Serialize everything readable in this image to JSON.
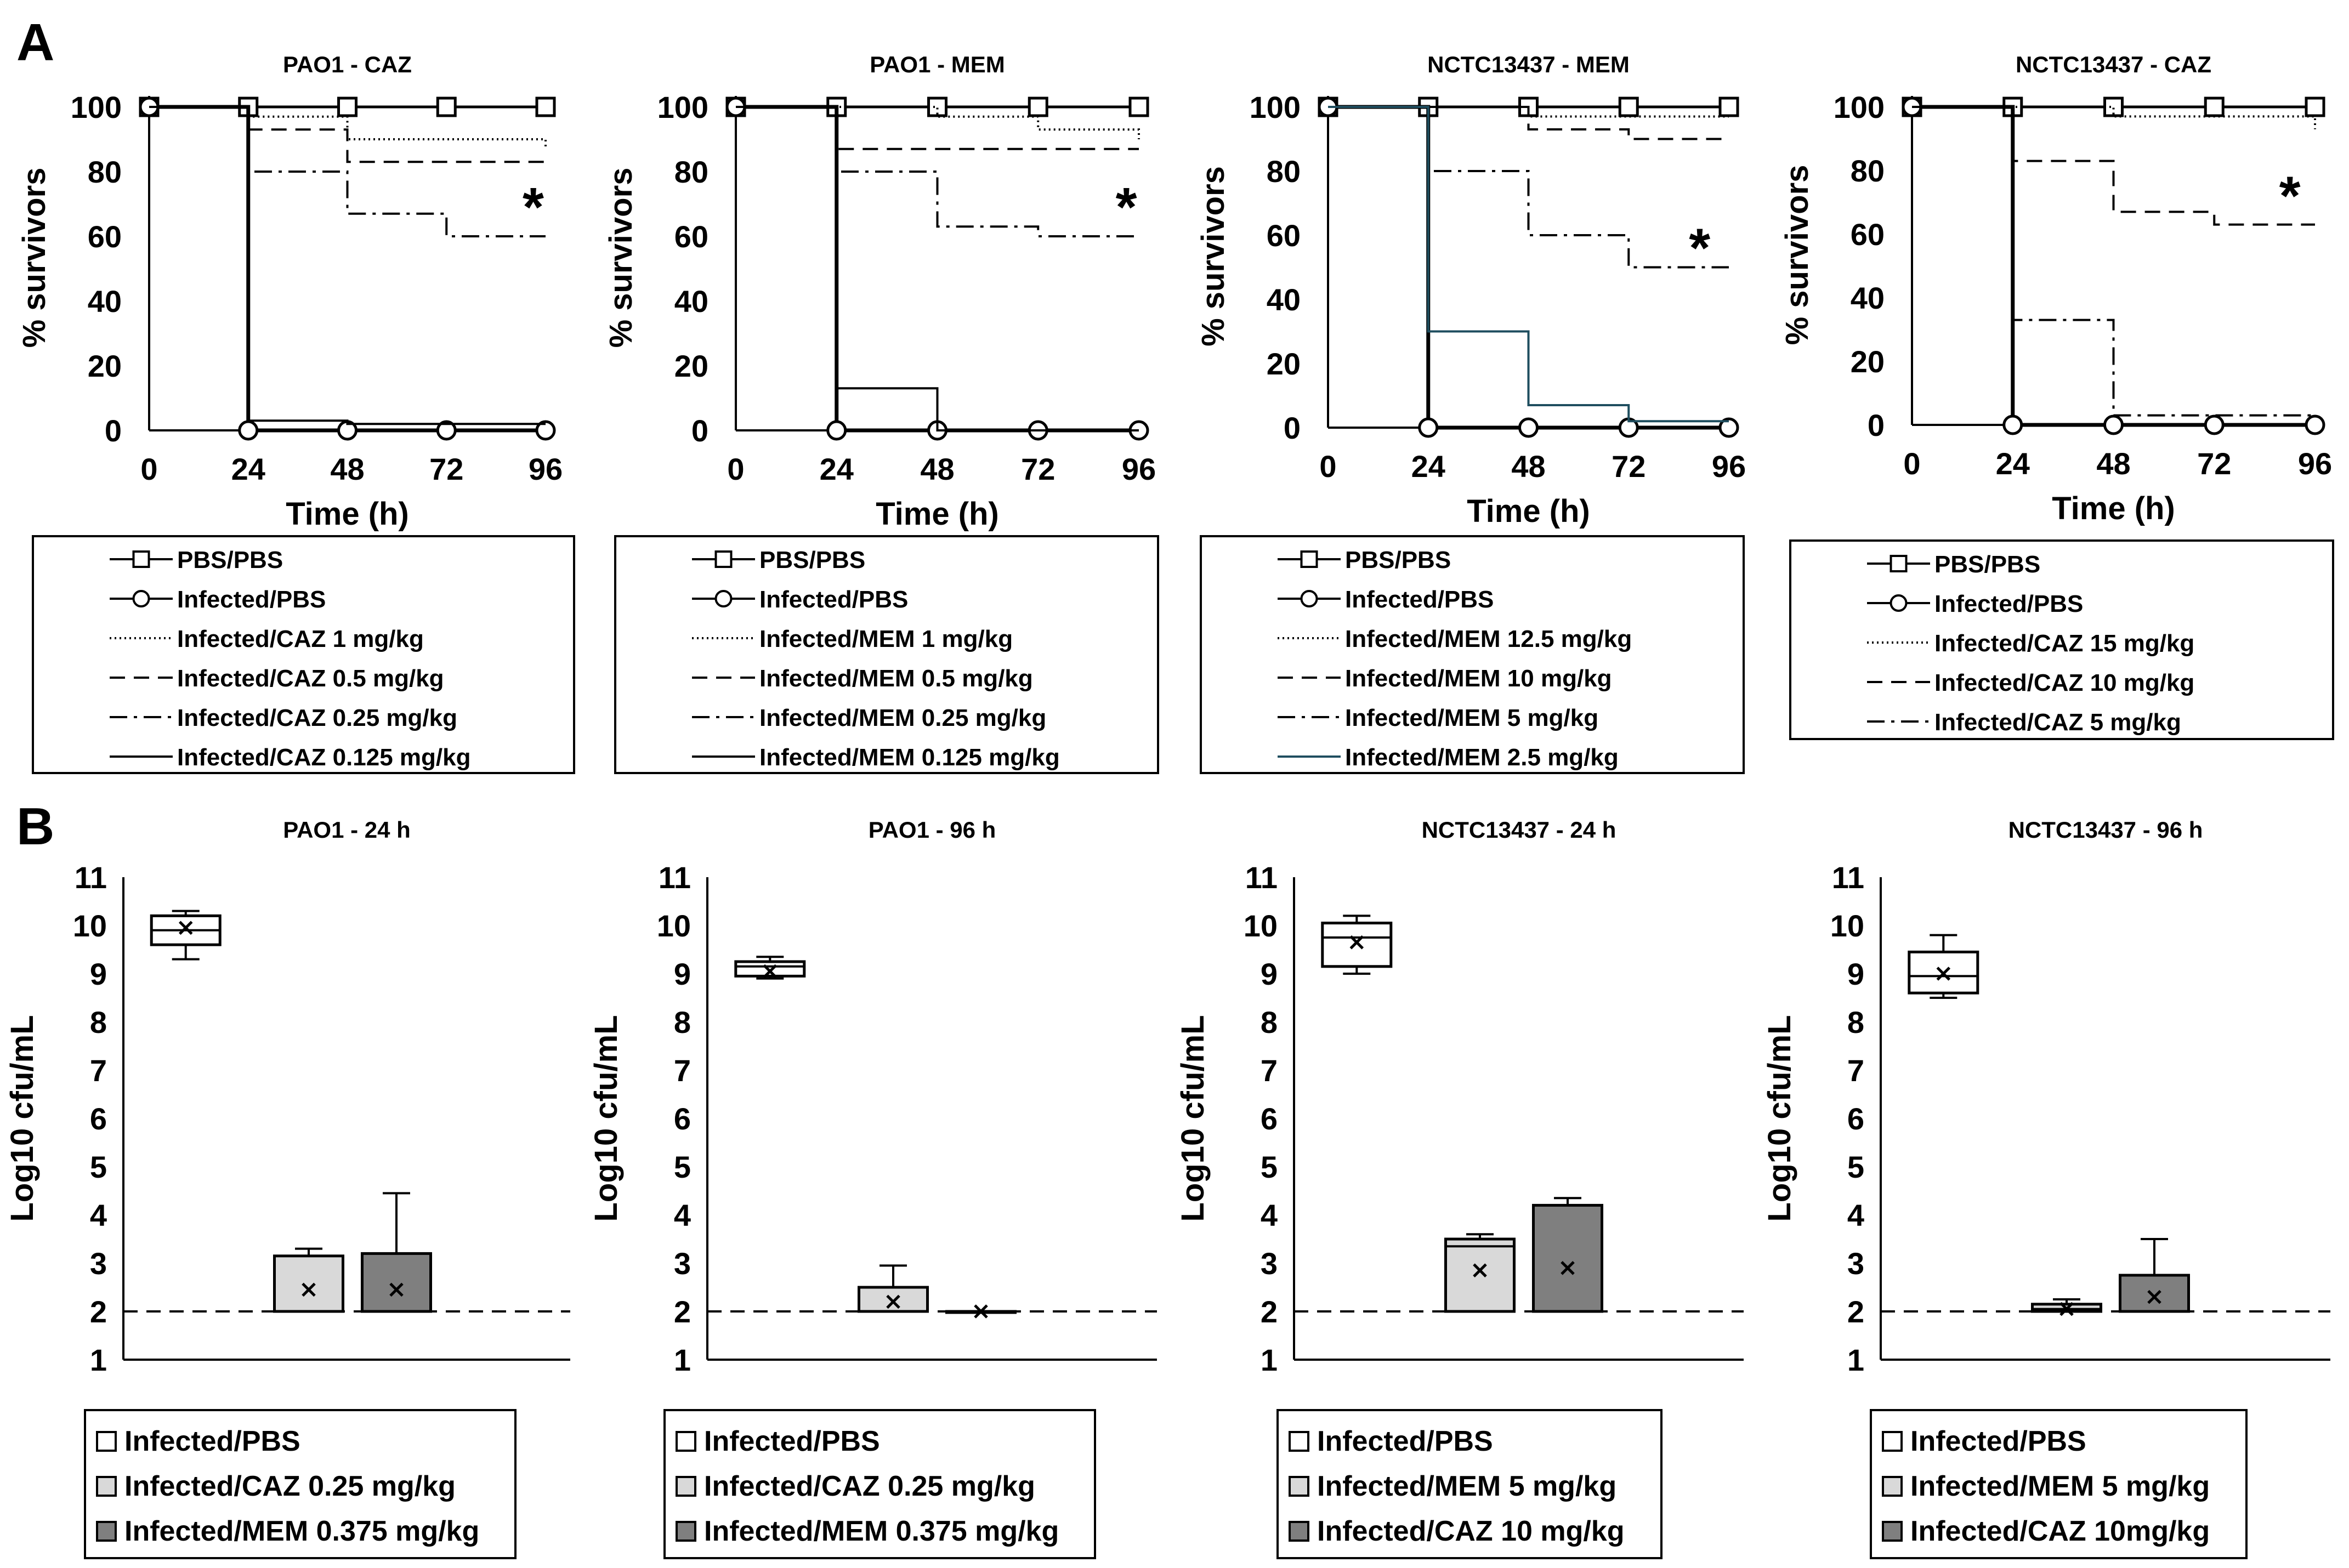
{
  "panel_labels": [
    "A",
    "B"
  ],
  "colors": {
    "black": "#000000",
    "teal": "#1f4e5f",
    "light_gray": "#d9d9d9",
    "dark_gray": "#7f7f7f"
  },
  "chart_data": [
    {
      "type": "line",
      "panel": "A",
      "title": "PAO1 - CAZ",
      "xlabel": "Time (h)",
      "ylabel": "% survivors",
      "xlim": [
        0,
        96
      ],
      "ylim": [
        0,
        100
      ],
      "xticks": [
        0,
        24,
        48,
        72,
        96
      ],
      "yticks": [
        0,
        20,
        40,
        60,
        80,
        100
      ],
      "annotation": "*",
      "annotation_at": [
        93,
        70
      ],
      "series": [
        {
          "name": "PBS/PBS",
          "style": "square-markers",
          "x": [
            0,
            24,
            48,
            72,
            96
          ],
          "values": [
            100,
            100,
            100,
            100,
            100
          ]
        },
        {
          "name": "Infected/PBS",
          "style": "circle-markers",
          "x": [
            0,
            24,
            48,
            72,
            96
          ],
          "values": [
            100,
            0,
            0,
            0,
            0
          ]
        },
        {
          "name": "Infected/CAZ 1 mg/kg",
          "style": "dotted",
          "x": [
            0,
            24,
            48,
            72,
            96
          ],
          "values": [
            100,
            97,
            90,
            90,
            87
          ]
        },
        {
          "name": "Infected/CAZ 0.5 mg/kg",
          "style": "dashed",
          "x": [
            0,
            24,
            48,
            72,
            96
          ],
          "values": [
            100,
            93,
            83,
            83,
            83
          ]
        },
        {
          "name": "Infected/CAZ 0.25 mg/kg",
          "style": "dashdot",
          "x": [
            0,
            24,
            48,
            72,
            96
          ],
          "values": [
            100,
            80,
            67,
            60,
            60
          ]
        },
        {
          "name": "Infected/CAZ 0.125 mg/kg",
          "style": "solid",
          "x": [
            0,
            24,
            48,
            72,
            96
          ],
          "values": [
            100,
            3,
            2,
            2,
            2
          ]
        }
      ]
    },
    {
      "type": "line",
      "panel": "A",
      "title": "PAO1 - MEM",
      "xlabel": "Time (h)",
      "ylabel": "% survivors",
      "xlim": [
        0,
        96
      ],
      "ylim": [
        0,
        100
      ],
      "xticks": [
        0,
        24,
        48,
        72,
        96
      ],
      "yticks": [
        0,
        20,
        40,
        60,
        80,
        100
      ],
      "annotation": "*",
      "annotation_at": [
        93,
        70
      ],
      "series": [
        {
          "name": "PBS/PBS",
          "style": "square-markers",
          "x": [
            0,
            24,
            48,
            72,
            96
          ],
          "values": [
            100,
            100,
            100,
            100,
            100
          ]
        },
        {
          "name": "Infected/PBS",
          "style": "circle-markers",
          "x": [
            0,
            24,
            48,
            72,
            96
          ],
          "values": [
            100,
            0,
            0,
            0,
            0
          ]
        },
        {
          "name": "Infected/MEM 1 mg/kg",
          "style": "dotted",
          "x": [
            0,
            24,
            48,
            72,
            96
          ],
          "values": [
            100,
            100,
            97,
            93,
            90
          ]
        },
        {
          "name": "Infected/MEM 0.5 mg/kg",
          "style": "dashed",
          "x": [
            0,
            24,
            48,
            72,
            96
          ],
          "values": [
            100,
            87,
            87,
            87,
            87
          ]
        },
        {
          "name": "Infected/MEM 0.25 mg/kg",
          "style": "dashdot",
          "x": [
            0,
            24,
            48,
            72,
            96
          ],
          "values": [
            100,
            80,
            63,
            60,
            60
          ]
        },
        {
          "name": "Infected/MEM 0.125 mg/kg",
          "style": "solid",
          "x": [
            0,
            24,
            48,
            72,
            96
          ],
          "values": [
            100,
            13,
            0,
            0,
            0
          ]
        }
      ]
    },
    {
      "type": "line",
      "panel": "A",
      "title": "NCTC13437 - MEM",
      "xlabel": "Time (h)",
      "ylabel": "% survivors",
      "xlim": [
        0,
        96
      ],
      "ylim": [
        0,
        100
      ],
      "xticks": [
        0,
        24,
        48,
        72,
        96
      ],
      "yticks": [
        0,
        20,
        40,
        60,
        80,
        100
      ],
      "annotation": "*",
      "annotation_at": [
        89,
        57
      ],
      "series": [
        {
          "name": "PBS/PBS",
          "style": "square-markers",
          "x": [
            0,
            24,
            48,
            72,
            96
          ],
          "values": [
            100,
            100,
            100,
            100,
            100
          ]
        },
        {
          "name": "Infected/PBS",
          "style": "circle-markers",
          "x": [
            0,
            24,
            48,
            72,
            96
          ],
          "values": [
            100,
            0,
            0,
            0,
            0
          ]
        },
        {
          "name": "Infected/MEM 12.5 mg/kg",
          "style": "dotted",
          "x": [
            0,
            24,
            48,
            72,
            96
          ],
          "values": [
            100,
            100,
            97,
            97,
            97
          ]
        },
        {
          "name": "Infected/MEM 10 mg/kg",
          "style": "dashed",
          "x": [
            0,
            24,
            48,
            72,
            96
          ],
          "values": [
            100,
            100,
            93,
            90,
            90
          ]
        },
        {
          "name": "Infected/MEM 5 mg/kg",
          "style": "dashdot",
          "x": [
            0,
            24,
            48,
            72,
            96
          ],
          "values": [
            100,
            80,
            60,
            50,
            50
          ]
        },
        {
          "name": "Infected/MEM 2.5 mg/kg",
          "style": "solid-teal",
          "x": [
            0,
            24,
            48,
            72,
            96
          ],
          "values": [
            100,
            30,
            7,
            2,
            2
          ]
        }
      ]
    },
    {
      "type": "line",
      "panel": "A",
      "title": "NCTC13437 - CAZ",
      "xlabel": "Time (h)",
      "ylabel": "% survivors",
      "xlim": [
        0,
        96
      ],
      "ylim": [
        0,
        100
      ],
      "xticks": [
        0,
        24,
        48,
        72,
        96
      ],
      "yticks": [
        0,
        20,
        40,
        60,
        80,
        100
      ],
      "annotation": "*",
      "annotation_at": [
        90,
        73
      ],
      "series": [
        {
          "name": "PBS/PBS",
          "style": "square-markers",
          "x": [
            0,
            24,
            48,
            72,
            96
          ],
          "values": [
            100,
            100,
            100,
            100,
            100
          ]
        },
        {
          "name": "Infected/PBS",
          "style": "circle-markers",
          "x": [
            0,
            24,
            48,
            72,
            96
          ],
          "values": [
            100,
            0,
            0,
            0,
            0
          ]
        },
        {
          "name": "Infected/CAZ 15 mg/kg",
          "style": "dotted",
          "x": [
            0,
            24,
            48,
            72,
            96
          ],
          "values": [
            100,
            100,
            97,
            97,
            93
          ]
        },
        {
          "name": "Infected/CAZ 10 mg/kg",
          "style": "dashed",
          "x": [
            0,
            24,
            48,
            72,
            96
          ],
          "values": [
            100,
            83,
            67,
            63,
            63
          ]
        },
        {
          "name": "Infected/CAZ 5 mg/kg",
          "style": "dashdot",
          "x": [
            0,
            24,
            48,
            72,
            96
          ],
          "values": [
            100,
            33,
            3,
            3,
            3
          ]
        }
      ]
    },
    {
      "type": "box",
      "panel": "B",
      "title": "PAO1 - 24 h",
      "ylabel": "Log10 cfu/mL",
      "ylim": [
        1,
        11
      ],
      "yticks": [
        1,
        2,
        3,
        4,
        5,
        6,
        7,
        8,
        9,
        10,
        11
      ],
      "detection_limit": 2,
      "boxes": [
        {
          "name": "Infected/PBS",
          "fill": "white",
          "min": 9.3,
          "q1": 9.6,
          "median": 9.9,
          "q3": 10.2,
          "max": 10.3,
          "mean": 9.95
        },
        {
          "name": "Infected/CAZ 0.25 mg/kg",
          "fill": "light",
          "min": 2,
          "q1": 2,
          "median": 2,
          "q3": 3.15,
          "max": 3.3,
          "mean": 2.45
        },
        {
          "name": "Infected/MEM 0.375 mg/kg",
          "fill": "dark",
          "min": 2,
          "q1": 2,
          "median": 2,
          "q3": 3.2,
          "max": 4.45,
          "mean": 2.45
        }
      ]
    },
    {
      "type": "box",
      "panel": "B",
      "title": "PAO1 - 96 h",
      "ylabel": "Log10 cfu/mL",
      "ylim": [
        1,
        11
      ],
      "yticks": [
        1,
        2,
        3,
        4,
        5,
        6,
        7,
        8,
        9,
        10,
        11
      ],
      "detection_limit": 2,
      "boxes": [
        {
          "name": "Infected/PBS",
          "fill": "white",
          "min": 8.9,
          "q1": 8.95,
          "median": 9.15,
          "q3": 9.25,
          "max": 9.35,
          "mean": 9.05
        },
        {
          "name": "Infected/CAZ 0.25 mg/kg",
          "fill": "light",
          "min": 2,
          "q1": 2,
          "median": 2,
          "q3": 2.5,
          "max": 2.95,
          "mean": 2.2
        },
        {
          "name": "Infected/MEM 0.375 mg/kg",
          "fill": "dark",
          "min": 2,
          "q1": 2,
          "median": 2,
          "q3": 2,
          "max": 2,
          "mean": 2.0
        }
      ]
    },
    {
      "type": "box",
      "panel": "B",
      "title": "NCTC13437 - 24 h",
      "ylabel": "Log10 cfu/mL",
      "ylim": [
        1,
        11
      ],
      "yticks": [
        1,
        2,
        3,
        4,
        5,
        6,
        7,
        8,
        9,
        10,
        11
      ],
      "detection_limit": 2,
      "boxes": [
        {
          "name": "Infected/PBS",
          "fill": "white",
          "min": 9.0,
          "q1": 9.15,
          "median": 9.75,
          "q3": 10.05,
          "max": 10.2,
          "mean": 9.65
        },
        {
          "name": "Infected/MEM 5 mg/kg",
          "fill": "light",
          "min": 2,
          "q1": 2,
          "median": 3.35,
          "q3": 3.5,
          "max": 3.6,
          "mean": 2.85
        },
        {
          "name": "Infected/CAZ 10 mg/kg",
          "fill": "dark",
          "min": 2,
          "q1": 2,
          "median": 2,
          "q3": 4.2,
          "max": 4.35,
          "mean": 2.9
        }
      ]
    },
    {
      "type": "box",
      "panel": "B",
      "title": "NCTC13437 - 96 h",
      "ylabel": "Log10 cfu/mL",
      "ylim": [
        1,
        11
      ],
      "yticks": [
        1,
        2,
        3,
        4,
        5,
        6,
        7,
        8,
        9,
        10,
        11
      ],
      "detection_limit": 2,
      "boxes": [
        {
          "name": "Infected/PBS",
          "fill": "white",
          "min": 8.5,
          "q1": 8.6,
          "median": 8.95,
          "q3": 9.45,
          "max": 9.8,
          "mean": 9.0
        },
        {
          "name": "Infected/MEM 5 mg/kg",
          "fill": "light",
          "min": 2,
          "q1": 2,
          "median": 2.05,
          "q3": 2.15,
          "max": 2.25,
          "mean": 2.05
        },
        {
          "name": "Infected/CAZ 10mg/kg",
          "fill": "dark",
          "min": 2,
          "q1": 2,
          "median": 2,
          "q3": 2.75,
          "max": 3.5,
          "mean": 2.3
        }
      ]
    }
  ]
}
